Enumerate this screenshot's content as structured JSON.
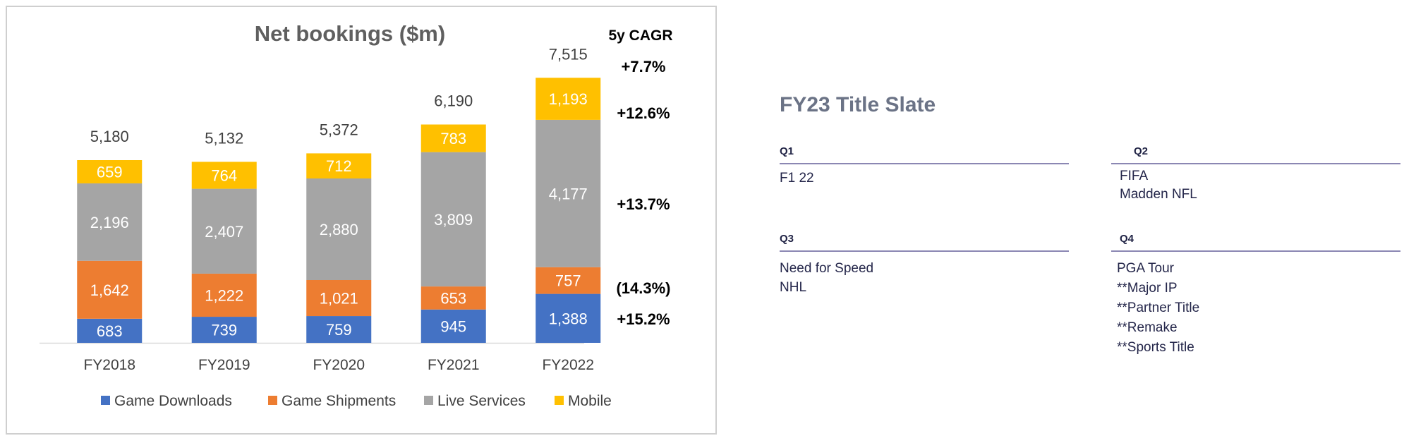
{
  "chart_data": {
    "type": "bar",
    "stacked": true,
    "title": "Net bookings ($m)",
    "categories": [
      "FY2018",
      "FY2019",
      "FY2020",
      "FY2021",
      "FY2022"
    ],
    "series": [
      {
        "name": "Game Downloads",
        "color": "#4472c4",
        "values": [
          683,
          739,
          759,
          945,
          1388
        ],
        "labels": [
          "683",
          "739",
          "759",
          "945",
          "1,388"
        ]
      },
      {
        "name": "Game Shipments",
        "color": "#ed7d31",
        "values": [
          1642,
          1222,
          1021,
          653,
          757
        ],
        "labels": [
          "1,642",
          "1,222",
          "1,021",
          "653",
          "757"
        ]
      },
      {
        "name": "Live Services",
        "color": "#a5a5a5",
        "values": [
          2196,
          2407,
          2880,
          3809,
          4177
        ],
        "labels": [
          "2,196",
          "2,407",
          "2,880",
          "3,809",
          "4,177"
        ]
      },
      {
        "name": "Mobile",
        "color": "#ffc000",
        "values": [
          659,
          764,
          712,
          783,
          1193
        ],
        "labels": [
          "659",
          "764",
          "712",
          "783",
          "1,193"
        ]
      }
    ],
    "totals": [
      5180,
      5132,
      5372,
      6190,
      7515
    ],
    "total_labels": [
      "5,180",
      "5,132",
      "5,372",
      "6,190",
      "7,515"
    ],
    "ylim": [
      0,
      7600
    ],
    "legend_position": "bottom",
    "cagr": {
      "heading": "5y CAGR",
      "total": "+7.7%",
      "mobile": "+12.6%",
      "live_services": "+13.7%",
      "game_shipments": "(14.3%)",
      "game_downloads": "+15.2%"
    }
  },
  "slate": {
    "title": "FY23 Title Slate",
    "quarters": [
      {
        "label": "Q1",
        "items": [
          "F1 22"
        ]
      },
      {
        "label": "Q2",
        "items": [
          "FIFA",
          "Madden NFL"
        ]
      },
      {
        "label": "Q3",
        "items": [
          "Need for Speed",
          "NHL"
        ]
      },
      {
        "label": "Q4",
        "items": [
          "PGA Tour",
          "**Major IP",
          "**Partner Title",
          "**Remake",
          "**Sports Title"
        ]
      }
    ]
  }
}
